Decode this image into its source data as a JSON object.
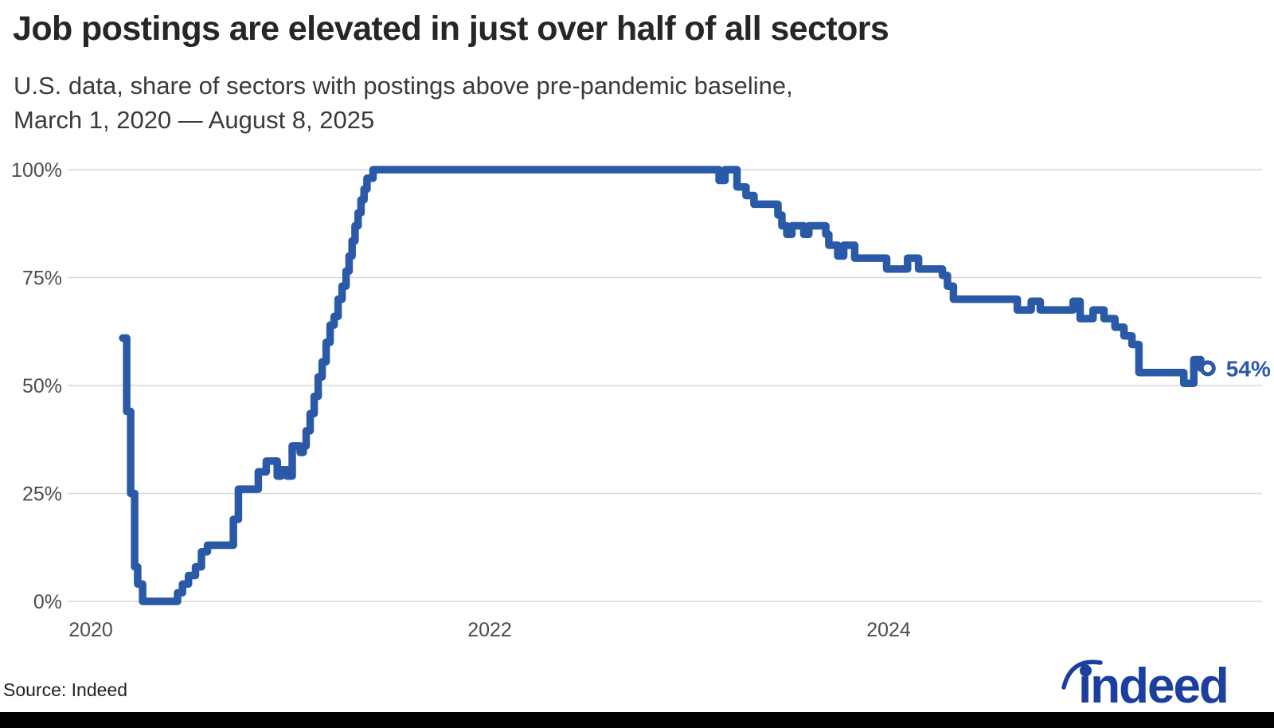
{
  "page": {
    "title": "Job postings are elevated in just over half of all sectors",
    "subtitle_line1": "U.S. data, share of sectors with postings above pre-pandemic baseline,",
    "subtitle_line2": "March 1, 2020 — August 8, 2025",
    "source": "Source: Indeed",
    "logo_wordmark": "indeed"
  },
  "colors": {
    "line": "#2a59a8",
    "end_label": "#2a59a8",
    "logo": "#1c3e9e",
    "grid": "#d8d8d8",
    "axis_text": "#4d4d4d",
    "title_text": "#262626",
    "subtitle_text": "#3a3a3a",
    "source_text": "#222222",
    "footer_bar": "#000000",
    "background": "#ffffff"
  },
  "chart_data": {
    "type": "line",
    "title": "Job postings are elevated in just over half of all sectors",
    "subtitle": "U.S. data, share of sectors with postings above pre-pandemic baseline, March 1, 2020 — August 8, 2025",
    "xlabel": "",
    "ylabel": "",
    "unit": "%",
    "grid": "horizontal-only",
    "legend": "none",
    "x_start_date": "2020-03-01",
    "x_end_date": "2025-08-08",
    "x_tick_years": [
      2020,
      2022,
      2024
    ],
    "y_ticks_percent": [
      0,
      25,
      50,
      75,
      100
    ],
    "ylim": [
      0,
      100
    ],
    "xlim_years": [
      2019.88,
      2025.87
    ],
    "end_label": "54%",
    "final_value_percent": 54,
    "series": [
      {
        "name": "Share of sectors with postings above pre-pandemic baseline",
        "color": "#2a59a8",
        "step": true,
        "end_year": 2025.6,
        "points_year_value": [
          [
            2020.16,
            61
          ],
          [
            2020.18,
            44
          ],
          [
            2020.2,
            25
          ],
          [
            2020.22,
            8
          ],
          [
            2020.235,
            4
          ],
          [
            2020.26,
            0
          ],
          [
            2020.435,
            2
          ],
          [
            2020.46,
            4
          ],
          [
            2020.49,
            6
          ],
          [
            2020.525,
            8
          ],
          [
            2020.555,
            11.5
          ],
          [
            2020.585,
            13
          ],
          [
            2020.715,
            19
          ],
          [
            2020.74,
            26
          ],
          [
            2020.84,
            30
          ],
          [
            2020.88,
            32.5
          ],
          [
            2020.935,
            29
          ],
          [
            2020.955,
            30.5
          ],
          [
            2020.985,
            29
          ],
          [
            2021.01,
            36
          ],
          [
            2021.05,
            34.5
          ],
          [
            2021.065,
            36
          ],
          [
            2021.08,
            39.5
          ],
          [
            2021.1,
            43.5
          ],
          [
            2021.12,
            47.5
          ],
          [
            2021.14,
            52
          ],
          [
            2021.16,
            55.5
          ],
          [
            2021.18,
            60
          ],
          [
            2021.2,
            64
          ],
          [
            2021.22,
            66
          ],
          [
            2021.24,
            70
          ],
          [
            2021.26,
            73
          ],
          [
            2021.28,
            76.5
          ],
          [
            2021.295,
            80
          ],
          [
            2021.31,
            83.5
          ],
          [
            2021.325,
            87
          ],
          [
            2021.34,
            90
          ],
          [
            2021.355,
            93
          ],
          [
            2021.37,
            95.5
          ],
          [
            2021.385,
            98
          ],
          [
            2021.415,
            100
          ],
          [
            2023.15,
            97.5
          ],
          [
            2023.18,
            100
          ],
          [
            2023.24,
            96
          ],
          [
            2023.285,
            94
          ],
          [
            2023.325,
            92
          ],
          [
            2023.445,
            89.5
          ],
          [
            2023.465,
            87
          ],
          [
            2023.49,
            85
          ],
          [
            2023.515,
            87
          ],
          [
            2023.575,
            85
          ],
          [
            2023.6,
            87
          ],
          [
            2023.685,
            85
          ],
          [
            2023.7,
            82.5
          ],
          [
            2023.745,
            80
          ],
          [
            2023.775,
            82.5
          ],
          [
            2023.83,
            79.5
          ],
          [
            2023.99,
            77
          ],
          [
            2024.095,
            79.5
          ],
          [
            2024.15,
            77
          ],
          [
            2024.27,
            75.5
          ],
          [
            2024.295,
            73
          ],
          [
            2024.325,
            70
          ],
          [
            2024.645,
            67.5
          ],
          [
            2024.715,
            69.5
          ],
          [
            2024.76,
            67.5
          ],
          [
            2024.925,
            69.5
          ],
          [
            2024.96,
            65.5
          ],
          [
            2025.025,
            67.5
          ],
          [
            2025.08,
            65.5
          ],
          [
            2025.135,
            63.5
          ],
          [
            2025.18,
            61.5
          ],
          [
            2025.22,
            59.5
          ],
          [
            2025.255,
            53
          ],
          [
            2025.48,
            50.5
          ],
          [
            2025.53,
            56
          ],
          [
            2025.565,
            54
          ]
        ]
      }
    ]
  }
}
